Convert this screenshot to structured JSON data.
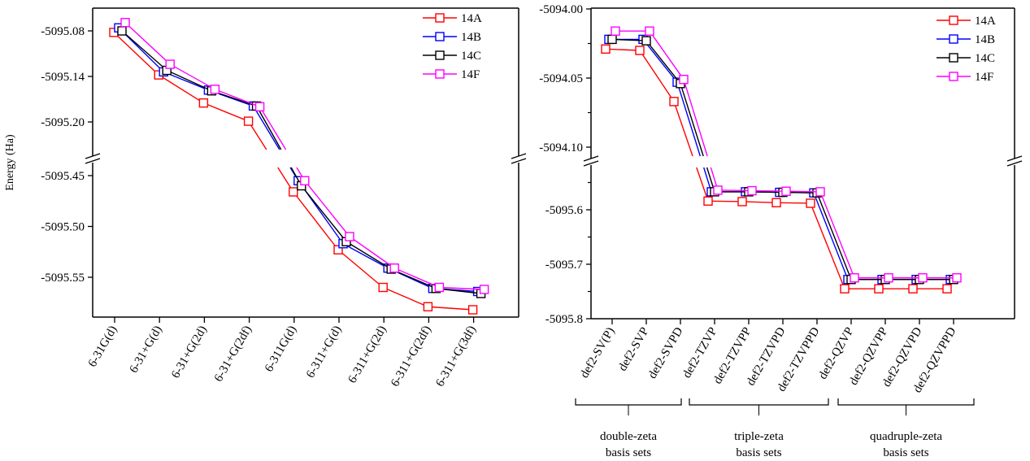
{
  "chart_data": [
    {
      "type": "line",
      "title": "",
      "xlabel": "",
      "ylabel": "Energy (Ha)",
      "categories": [
        "6-31G(d)",
        "6-31+G(d)",
        "6-31+G(2d)",
        "6-31+G(2df)",
        "6-311G(d)",
        "6-311+G(d)",
        "6-311+G(2d)",
        "6-311+G(2df)",
        "6-311+G(3df)"
      ],
      "broken_axis": true,
      "ylim_upper": [
        -5095.225,
        -5095.05
      ],
      "ylim_lower": [
        -5095.59,
        -5095.43
      ],
      "yticks_upper": [
        "-5095.08",
        "-5095.14",
        "-5095.20"
      ],
      "yticks_lower": [
        "-5095.45",
        "-5095.50",
        "-5095.55"
      ],
      "legend_position": "top-right",
      "series": [
        {
          "name": "14A",
          "color": "#ff0000",
          "values": [
            -5095.082,
            -5095.138,
            -5095.175,
            -5095.199,
            -5095.466,
            -5095.523,
            -5095.56,
            -5095.579,
            -5095.582
          ]
        },
        {
          "name": "14B",
          "color": "#0000ff",
          "values": [
            -5095.076,
            -5095.134,
            -5095.158,
            -5095.179,
            -5095.455,
            -5095.517,
            -5095.541,
            -5095.561,
            -5095.564
          ]
        },
        {
          "name": "14C",
          "color": "#000000",
          "values": [
            -5095.08,
            -5095.132,
            -5095.159,
            -5095.179,
            -5095.46,
            -5095.515,
            -5095.542,
            -5095.561,
            -5095.566
          ]
        },
        {
          "name": "14F",
          "color": "#ff00ff",
          "values": [
            -5095.069,
            -5095.124,
            -5095.157,
            -5095.18,
            -5095.455,
            -5095.51,
            -5095.541,
            -5095.56,
            -5095.562
          ]
        }
      ]
    },
    {
      "type": "line",
      "title": "",
      "xlabel": "",
      "ylabel": "",
      "categories": [
        "def2-SV(P)",
        "def2-SVP",
        "def2-SVPD",
        "def2-TZVP",
        "def2-TZVPP",
        "def2-TZVPD",
        "def2-TZVPPD",
        "def2-QZVP",
        "def2-QZVPP",
        "def2-QZVPD",
        "def2-QZVPPD"
      ],
      "broken_axis": true,
      "ylim_upper": [
        -5094.12,
        -5094.0
      ],
      "ylim_lower": [
        -5095.8,
        -5095.5
      ],
      "yticks_upper": [
        "-5094.00",
        "-5094.05",
        "-5094.10"
      ],
      "yticks_lower": [
        "-5095.6",
        "-5095.7",
        "-5095.8"
      ],
      "legend_position": "top-right",
      "groups": [
        {
          "label_line1": "double-zeta",
          "label_line2": "basis sets",
          "members": [
            "def2-SV(P)",
            "def2-SVP",
            "def2-SVPD"
          ]
        },
        {
          "label_line1": "triple-zeta",
          "label_line2": "basis sets",
          "members": [
            "def2-TZVP",
            "def2-TZVPP",
            "def2-TZVPD",
            "def2-TZVPPD"
          ]
        },
        {
          "label_line1": "quadruple-zeta",
          "label_line2": "basis sets",
          "members": [
            "def2-QZVP",
            "def2-QZVPP",
            "def2-QZVPD",
            "def2-QZVPPD"
          ]
        }
      ],
      "series": [
        {
          "name": "14A",
          "color": "#ff0000",
          "values": [
            -5094.029,
            -5094.03,
            -5094.067,
            -5095.584,
            -5095.585,
            -5095.587,
            -5095.588,
            -5095.745,
            -5095.745,
            -5095.745,
            -5095.745
          ]
        },
        {
          "name": "14B",
          "color": "#0000ff",
          "values": [
            -5094.022,
            -5094.022,
            -5094.053,
            -5095.567,
            -5095.567,
            -5095.568,
            -5095.569,
            -5095.728,
            -5095.728,
            -5095.728,
            -5095.728
          ]
        },
        {
          "name": "14C",
          "color": "#000000",
          "values": [
            -5094.022,
            -5094.023,
            -5094.054,
            -5095.567,
            -5095.567,
            -5095.568,
            -5095.569,
            -5095.728,
            -5095.728,
            -5095.728,
            -5095.728
          ]
        },
        {
          "name": "14F",
          "color": "#ff00ff",
          "values": [
            -5094.016,
            -5094.016,
            -5094.051,
            -5095.564,
            -5095.565,
            -5095.566,
            -5095.567,
            -5095.725,
            -5095.725,
            -5095.725,
            -5095.725
          ]
        }
      ]
    }
  ]
}
